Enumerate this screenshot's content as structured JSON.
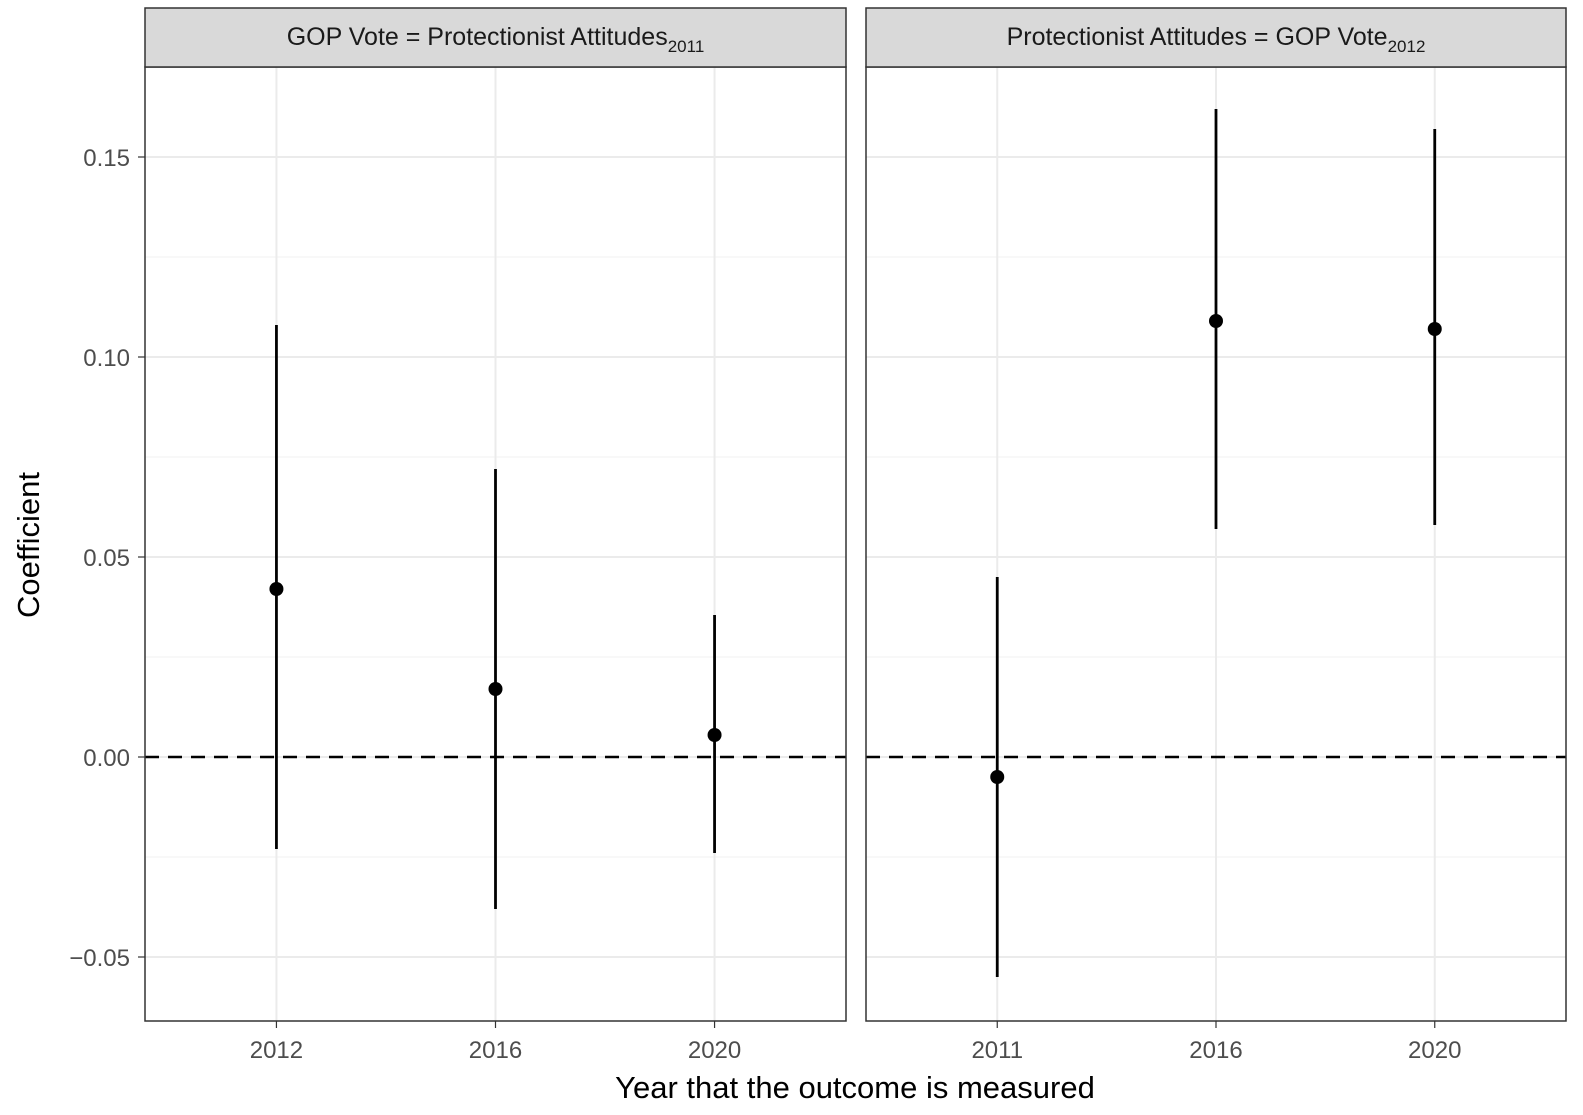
{
  "chart_data": {
    "type": "scatter",
    "subtype": "coefficient plot with error bars (point-range), faceted",
    "ylabel": "Coefficient",
    "xlabel": "Year that the outcome is measured",
    "ylim": [
      -0.066,
      0.1725
    ],
    "y_ticks": [
      "-0.05",
      "0.00",
      "0.05",
      "0.10",
      "0.15"
    ],
    "y_tick_values": [
      -0.05,
      0,
      0.05,
      0.1,
      0.15
    ],
    "reference_line": {
      "y": 0,
      "style": "dashed"
    },
    "grid": true,
    "colors": {
      "point": "#000000",
      "strip_fill": "#d9d9d9",
      "grid_major": "#ebebeb",
      "grid_minor": "#f4f4f4",
      "panel_border": "#333333"
    },
    "facets": [
      {
        "strip_main": "GOP Vote = Protectionist Attitudes",
        "strip_sub": "2011",
        "x_ticks": [
          "2012",
          "2016",
          "2020"
        ],
        "points": [
          {
            "x": "2012",
            "estimate": 0.042,
            "lower": -0.023,
            "upper": 0.108
          },
          {
            "x": "2016",
            "estimate": 0.017,
            "lower": -0.038,
            "upper": 0.072
          },
          {
            "x": "2020",
            "estimate": 0.0055,
            "lower": -0.024,
            "upper": 0.0355
          }
        ]
      },
      {
        "strip_main": "Protectionist Attitudes = GOP Vote",
        "strip_sub": "2012",
        "x_ticks": [
          "2011",
          "2016",
          "2020"
        ],
        "points": [
          {
            "x": "2011",
            "estimate": -0.005,
            "lower": -0.055,
            "upper": 0.045
          },
          {
            "x": "2016",
            "estimate": 0.109,
            "lower": 0.057,
            "upper": 0.162
          },
          {
            "x": "2020",
            "estimate": 0.107,
            "lower": 0.058,
            "upper": 0.157
          }
        ]
      }
    ]
  }
}
